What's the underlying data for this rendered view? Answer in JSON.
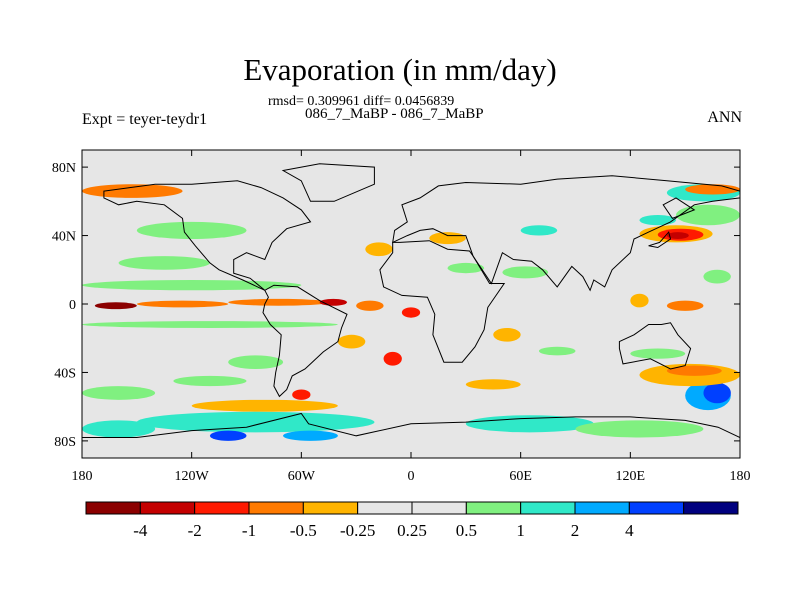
{
  "figure": {
    "title": "Evaporation (in mm/day)",
    "stats_line": "rmsd= 0.309961 diff= 0.0456839",
    "case_line": "086_7_MaBP - 086_7_MaBP",
    "expt_label": "Expt = teyer-teydr1",
    "season": "ANN"
  },
  "chart_data": {
    "type": "heatmap",
    "title": "Evaporation (in mm/day)",
    "projection": "cylindrical-equidistant",
    "xlim": [
      -180,
      180
    ],
    "ylim": [
      -90,
      90
    ],
    "x_ticks": [
      {
        "value": -180,
        "label": "180"
      },
      {
        "value": -120,
        "label": "120W"
      },
      {
        "value": -60,
        "label": "60W"
      },
      {
        "value": 0,
        "label": "0"
      },
      {
        "value": 60,
        "label": "60E"
      },
      {
        "value": 120,
        "label": "120E"
      },
      {
        "value": 180,
        "label": "180"
      }
    ],
    "y_ticks": [
      {
        "value": 80,
        "label": "80N"
      },
      {
        "value": 40,
        "label": "40N"
      },
      {
        "value": 0,
        "label": "0"
      },
      {
        "value": -40,
        "label": "40S"
      },
      {
        "value": -80,
        "label": "80S"
      }
    ],
    "colorbar": {
      "colors": [
        "#8b0000",
        "#c40000",
        "#ff1a00",
        "#ff7a00",
        "#ffb400",
        "#e6e6e6",
        "#e6e6e6",
        "#80f080",
        "#30e8c8",
        "#00aaff",
        "#0040ff",
        "#00007f"
      ],
      "levels": [
        -4,
        -2,
        -1,
        -0.5,
        -0.25,
        0.25,
        0.5,
        1,
        2,
        4
      ],
      "labels": [
        "-4",
        "-2",
        "-1",
        "-0.5",
        "-0.25",
        "0.25",
        "0.5",
        "1",
        "2",
        "4"
      ]
    },
    "background_color": "#e6e6e6",
    "anomaly_regions": [
      {
        "lon": [
          -180,
          -125
        ],
        "lat": [
          62,
          70
        ],
        "level": "#ff7a00"
      },
      {
        "lon": [
          -173,
          -150
        ],
        "lat": [
          -3,
          1
        ],
        "level": "#8b0000"
      },
      {
        "lon": [
          -150,
          -100
        ],
        "lat": [
          -2,
          2
        ],
        "level": "#ff7a00"
      },
      {
        "lon": [
          -100,
          -45
        ],
        "lat": [
          -1,
          3
        ],
        "level": "#ff7a00"
      },
      {
        "lon": [
          -50,
          -35
        ],
        "lat": [
          -1,
          3
        ],
        "level": "#c40000"
      },
      {
        "lon": [
          -180,
          -60
        ],
        "lat": [
          8,
          14
        ],
        "level": "#80f080"
      },
      {
        "lon": [
          -160,
          -110
        ],
        "lat": [
          20,
          28
        ],
        "level": "#80f080"
      },
      {
        "lon": [
          -150,
          -90
        ],
        "lat": [
          38,
          48
        ],
        "level": "#80f080"
      },
      {
        "lon": [
          -180,
          -40
        ],
        "lat": [
          -14,
          -10
        ],
        "level": "#80f080"
      },
      {
        "lon": [
          -100,
          -70
        ],
        "lat": [
          -38,
          -30
        ],
        "level": "#80f080"
      },
      {
        "lon": [
          -130,
          -90
        ],
        "lat": [
          -48,
          -42
        ],
        "level": "#80f080"
      },
      {
        "lon": [
          -180,
          -140
        ],
        "lat": [
          -56,
          -48
        ],
        "level": "#80f080"
      },
      {
        "lon": [
          -120,
          -40
        ],
        "lat": [
          -63,
          -56
        ],
        "level": "#ffb400"
      },
      {
        "lon": [
          -150,
          -20
        ],
        "lat": [
          -75,
          -63
        ],
        "level": "#30e8c8"
      },
      {
        "lon": [
          -180,
          -140
        ],
        "lat": [
          -78,
          -68
        ],
        "level": "#30e8c8"
      },
      {
        "lon": [
          -110,
          -90
        ],
        "lat": [
          -80,
          -74
        ],
        "level": "#0040ff"
      },
      {
        "lon": [
          -70,
          -40
        ],
        "lat": [
          -80,
          -74
        ],
        "level": "#00aaff"
      },
      {
        "lon": [
          30,
          100
        ],
        "lat": [
          -75,
          -65
        ],
        "level": "#30e8c8"
      },
      {
        "lon": [
          90,
          160
        ],
        "lat": [
          -78,
          -68
        ],
        "level": "#80f080"
      },
      {
        "lon": [
          150,
          175
        ],
        "lat": [
          -62,
          -45
        ],
        "level": "#00aaff"
      },
      {
        "lon": [
          160,
          175
        ],
        "lat": [
          -58,
          -46
        ],
        "level": "#0040ff"
      },
      {
        "lon": [
          125,
          180
        ],
        "lat": [
          -48,
          -35
        ],
        "level": "#ffb400"
      },
      {
        "lon": [
          140,
          170
        ],
        "lat": [
          -42,
          -36
        ],
        "level": "#ff7a00"
      },
      {
        "lon": [
          120,
          150
        ],
        "lat": [
          -32,
          -26
        ],
        "level": "#80f080"
      },
      {
        "lon": [
          125,
          165
        ],
        "lat": [
          36,
          46
        ],
        "level": "#ffb400"
      },
      {
        "lon": [
          135,
          160
        ],
        "lat": [
          37,
          44
        ],
        "level": "#ff1a00"
      },
      {
        "lon": [
          140,
          152
        ],
        "lat": [
          38,
          42
        ],
        "level": "#c40000"
      },
      {
        "lon": [
          125,
          145
        ],
        "lat": [
          46,
          52
        ],
        "level": "#30e8c8"
      },
      {
        "lon": [
          145,
          180
        ],
        "lat": [
          46,
          58
        ],
        "level": "#80f080"
      },
      {
        "lon": [
          140,
          180
        ],
        "lat": [
          60,
          70
        ],
        "level": "#30e8c8"
      },
      {
        "lon": [
          150,
          180
        ],
        "lat": [
          64,
          70
        ],
        "level": "#ff7a00"
      },
      {
        "lon": [
          160,
          175
        ],
        "lat": [
          12,
          20
        ],
        "level": "#80f080"
      },
      {
        "lon": [
          120,
          130
        ],
        "lat": [
          -2,
          6
        ],
        "level": "#ffb400"
      },
      {
        "lon": [
          140,
          160
        ],
        "lat": [
          -4,
          2
        ],
        "level": "#ff7a00"
      },
      {
        "lon": [
          -25,
          -10
        ],
        "lat": [
          28,
          36
        ],
        "level": "#ffb400"
      },
      {
        "lon": [
          -30,
          -15
        ],
        "lat": [
          -4,
          2
        ],
        "level": "#ff7a00"
      },
      {
        "lon": [
          -5,
          5
        ],
        "lat": [
          -8,
          -2
        ],
        "level": "#ff1a00"
      },
      {
        "lon": [
          -40,
          -25
        ],
        "lat": [
          -26,
          -18
        ],
        "level": "#ffb400"
      },
      {
        "lon": [
          -15,
          -5
        ],
        "lat": [
          -36,
          -28
        ],
        "level": "#ff1a00"
      },
      {
        "lon": [
          -65,
          -55
        ],
        "lat": [
          -56,
          -50
        ],
        "level": "#ff1a00"
      },
      {
        "lon": [
          10,
          30
        ],
        "lat": [
          35,
          42
        ],
        "level": "#ffb400"
      },
      {
        "lon": [
          20,
          40
        ],
        "lat": [
          18,
          24
        ],
        "level": "#80f080"
      },
      {
        "lon": [
          50,
          75
        ],
        "lat": [
          15,
          22
        ],
        "level": "#80f080"
      },
      {
        "lon": [
          45,
          60
        ],
        "lat": [
          -22,
          -14
        ],
        "level": "#ffb400"
      },
      {
        "lon": [
          70,
          90
        ],
        "lat": [
          -30,
          -25
        ],
        "level": "#80f080"
      },
      {
        "lon": [
          30,
          60
        ],
        "lat": [
          -50,
          -44
        ],
        "level": "#ffb400"
      },
      {
        "lon": [
          60,
          80
        ],
        "lat": [
          40,
          46
        ],
        "level": "#30e8c8"
      }
    ]
  }
}
